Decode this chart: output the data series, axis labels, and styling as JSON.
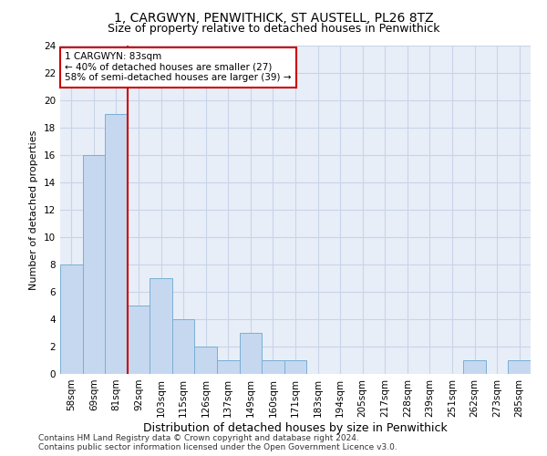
{
  "title": "1, CARGWYN, PENWITHICK, ST AUSTELL, PL26 8TZ",
  "subtitle": "Size of property relative to detached houses in Penwithick",
  "xlabel": "Distribution of detached houses by size in Penwithick",
  "ylabel": "Number of detached properties",
  "bar_labels": [
    "58sqm",
    "69sqm",
    "81sqm",
    "92sqm",
    "103sqm",
    "115sqm",
    "126sqm",
    "137sqm",
    "149sqm",
    "160sqm",
    "171sqm",
    "183sqm",
    "194sqm",
    "205sqm",
    "217sqm",
    "228sqm",
    "239sqm",
    "251sqm",
    "262sqm",
    "273sqm",
    "285sqm"
  ],
  "bar_values": [
    8,
    16,
    19,
    5,
    7,
    4,
    2,
    1,
    3,
    1,
    1,
    0,
    0,
    0,
    0,
    0,
    0,
    0,
    1,
    0,
    1
  ],
  "bar_color": "#c5d8f0",
  "bar_edgecolor": "#7aafd4",
  "grid_color": "#c8d4e8",
  "background_color": "#e8eef8",
  "vline_x": 2.5,
  "vline_color": "#cc0000",
  "annotation_text": "1 CARGWYN: 83sqm\n← 40% of detached houses are smaller (27)\n58% of semi-detached houses are larger (39) →",
  "annotation_box_color": "#cc0000",
  "ylim": [
    0,
    24
  ],
  "yticks": [
    0,
    2,
    4,
    6,
    8,
    10,
    12,
    14,
    16,
    18,
    20,
    22,
    24
  ],
  "footnote": "Contains HM Land Registry data © Crown copyright and database right 2024.\nContains public sector information licensed under the Open Government Licence v3.0.",
  "title_fontsize": 10,
  "subtitle_fontsize": 9,
  "xlabel_fontsize": 9,
  "ylabel_fontsize": 8,
  "tick_fontsize": 7.5,
  "annot_fontsize": 7.5,
  "footnote_fontsize": 6.5
}
